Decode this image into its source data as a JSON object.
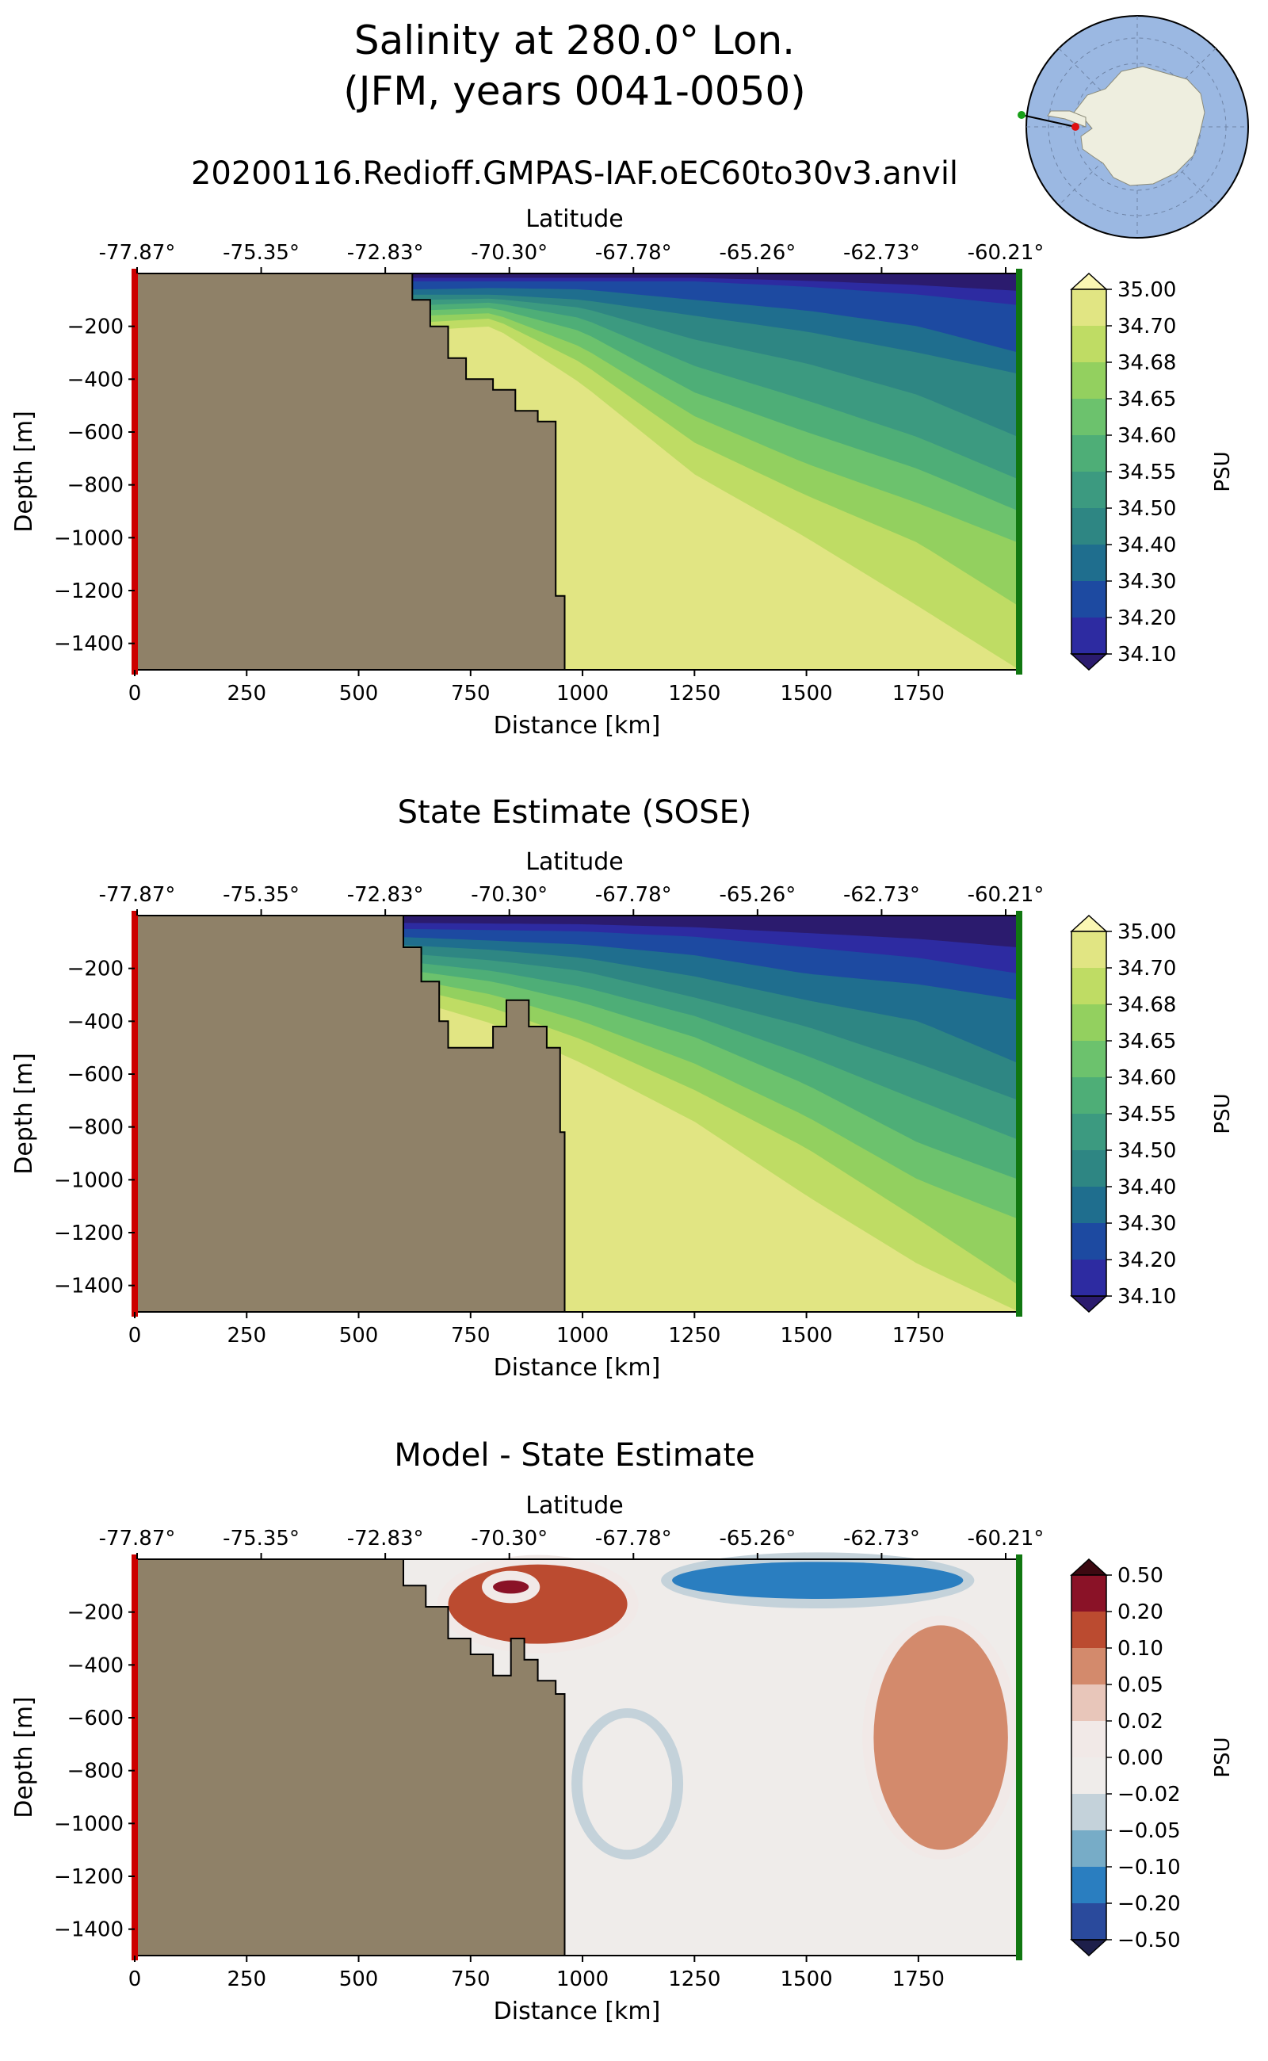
{
  "figure": {
    "title_line1": "Salinity at 280.0° Lon.",
    "title_line2": "(JFM, years 0041-0050)",
    "subtitle": "20200116.Redioff.GMPAS-IAF.oEC60to30v3.anvil"
  },
  "inset_map": {
    "projection": "south-polar stereographic",
    "transect_start_marker": "red",
    "transect_end_marker": "green",
    "ocean_color": "#9bb8e2",
    "land_color": "#eeeedf"
  },
  "colors": {
    "land": "#8f8168",
    "start_line": "#cc0000",
    "end_line": "#117711"
  },
  "chart_data": [
    {
      "type": "heatmap",
      "title": "",
      "xlabel": "Distance [km]",
      "ylabel": "Depth [m]",
      "top_axis_label": "Latitude",
      "top_ticks": [
        "-77.87°",
        "-75.35°",
        "-72.83°",
        "-70.30°",
        "-67.78°",
        "-65.26°",
        "-62.73°",
        "-60.21°"
      ],
      "x_ticks": [
        0,
        250,
        500,
        750,
        1000,
        1250,
        1500,
        1750
      ],
      "x_tick_labels": [
        "0",
        "250",
        "500",
        "750",
        "1000",
        "1250",
        "1500",
        "1750"
      ],
      "y_ticks": [
        -200,
        -400,
        -600,
        -800,
        -1000,
        -1200,
        -1400
      ],
      "y_tick_labels": [
        "−200",
        "−400",
        "−600",
        "−800",
        "−1000",
        "−1200",
        "−1400"
      ],
      "xlim": [
        0,
        1975
      ],
      "ylim": [
        -1500,
        0
      ],
      "colorbar_label": "PSU",
      "colorbar_levels": [
        "34.10",
        "34.20",
        "34.30",
        "34.40",
        "34.50",
        "34.55",
        "34.60",
        "34.65",
        "34.68",
        "34.70",
        "35.00"
      ],
      "colorbar_colors": [
        "#2b1b6e",
        "#2d2ba1",
        "#1d4aa1",
        "#1f6e8e",
        "#2e8683",
        "#3c9a80",
        "#4eae77",
        "#6cc26d",
        "#93d05f",
        "#bfdc64",
        "#e1e583",
        "#fbf7b3"
      ],
      "bathymetry": {
        "distance_km": [
          0,
          580,
          620,
          660,
          700,
          740,
          800,
          850,
          900,
          940,
          960
        ],
        "depth_m": [
          0,
          0,
          -100,
          -200,
          -320,
          -400,
          -440,
          -520,
          -560,
          -1220,
          -1500
        ]
      },
      "isoline_depths_m": {
        "distance_km": [
          640,
          800,
          1000,
          1250,
          1500,
          1750,
          1975
        ],
        "levels": [
          {
            "value": 34.2,
            "depth_m": [
              -30,
              -30,
              -30,
              -30,
              -50,
              -80,
              -120
            ]
          },
          {
            "value": 34.3,
            "depth_m": [
              -60,
              -55,
              -60,
              -100,
              -140,
              -200,
              -300
            ]
          },
          {
            "value": 34.4,
            "depth_m": [
              -80,
              -80,
              -100,
              -160,
              -220,
              -300,
              -380
            ]
          },
          {
            "value": 34.5,
            "depth_m": [
              -100,
              -95,
              -130,
              -250,
              -340,
              -460,
              -620
            ]
          },
          {
            "value": 34.55,
            "depth_m": [
              -120,
              -110,
              -170,
              -350,
              -480,
              -620,
              -780
            ]
          },
          {
            "value": 34.6,
            "depth_m": [
              -140,
              -130,
              -220,
              -450,
              -600,
              -740,
              -900
            ]
          },
          {
            "value": 34.65,
            "depth_m": [
              -160,
              -150,
              -280,
              -540,
              -720,
              -870,
              -1020
            ]
          },
          {
            "value": 34.68,
            "depth_m": [
              -185,
              -170,
              -340,
              -640,
              -840,
              -1020,
              -1260
            ]
          },
          {
            "value": 34.7,
            "depth_m": [
              -215,
              -200,
              -420,
              -760,
              -1000,
              -1260,
              -1500
            ]
          }
        ]
      }
    },
    {
      "type": "heatmap",
      "title": "State Estimate (SOSE)",
      "xlabel": "Distance [km]",
      "ylabel": "Depth [m]",
      "top_axis_label": "Latitude",
      "top_ticks": [
        "-77.87°",
        "-75.35°",
        "-72.83°",
        "-70.30°",
        "-67.78°",
        "-65.26°",
        "-62.73°",
        "-60.21°"
      ],
      "x_ticks": [
        0,
        250,
        500,
        750,
        1000,
        1250,
        1500,
        1750
      ],
      "x_tick_labels": [
        "0",
        "250",
        "500",
        "750",
        "1000",
        "1250",
        "1500",
        "1750"
      ],
      "y_ticks": [
        -200,
        -400,
        -600,
        -800,
        -1000,
        -1200,
        -1400
      ],
      "y_tick_labels": [
        "−200",
        "−400",
        "−600",
        "−800",
        "−1000",
        "−1200",
        "−1400"
      ],
      "xlim": [
        0,
        1975
      ],
      "ylim": [
        -1500,
        0
      ],
      "colorbar_label": "PSU",
      "colorbar_levels": [
        "34.10",
        "34.20",
        "34.30",
        "34.40",
        "34.50",
        "34.55",
        "34.60",
        "34.65",
        "34.68",
        "34.70",
        "35.00"
      ],
      "colorbar_colors": [
        "#2b1b6e",
        "#2d2ba1",
        "#1d4aa1",
        "#1f6e8e",
        "#2e8683",
        "#3c9a80",
        "#4eae77",
        "#6cc26d",
        "#93d05f",
        "#bfdc64",
        "#e1e583",
        "#fbf7b3"
      ],
      "bathymetry": {
        "distance_km": [
          0,
          560,
          600,
          640,
          680,
          700,
          800,
          830,
          880,
          920,
          950,
          960
        ],
        "depth_m": [
          0,
          0,
          -120,
          -250,
          -400,
          -500,
          -420,
          -320,
          -420,
          -500,
          -820,
          -1500
        ]
      },
      "isoline_depths_m": {
        "distance_km": [
          580,
          800,
          1000,
          1250,
          1500,
          1750,
          1975
        ],
        "levels": [
          {
            "value": 34.2,
            "depth_m": [
              -50,
              -55,
              -60,
              -80,
              -120,
              -160,
              -220
            ]
          },
          {
            "value": 34.3,
            "depth_m": [
              -80,
              -95,
              -110,
              -150,
              -220,
              -260,
              -320
            ]
          },
          {
            "value": 34.4,
            "depth_m": [
              -110,
              -130,
              -160,
              -230,
              -320,
              -400,
              -560
            ]
          },
          {
            "value": 34.5,
            "depth_m": [
              -140,
              -170,
              -210,
              -310,
              -420,
              -560,
              -700
            ]
          },
          {
            "value": 34.55,
            "depth_m": [
              -170,
              -210,
              -270,
              -380,
              -530,
              -700,
              -850
            ]
          },
          {
            "value": 34.6,
            "depth_m": [
              -200,
              -250,
              -330,
              -460,
              -640,
              -860,
              -1000
            ]
          },
          {
            "value": 34.65,
            "depth_m": [
              -230,
              -300,
              -400,
              -560,
              -760,
              -1000,
              -1150
            ]
          },
          {
            "value": 34.68,
            "depth_m": [
              -260,
              -350,
              -470,
              -660,
              -880,
              -1150,
              -1400
            ]
          },
          {
            "value": 34.7,
            "depth_m": [
              -300,
              -410,
              -560,
              -780,
              -1060,
              -1320,
              -1500
            ]
          }
        ]
      }
    },
    {
      "type": "heatmap",
      "title": "Model - State Estimate",
      "xlabel": "Distance [km]",
      "ylabel": "Depth [m]",
      "top_axis_label": "Latitude",
      "top_ticks": [
        "-77.87°",
        "-75.35°",
        "-72.83°",
        "-70.30°",
        "-67.78°",
        "-65.26°",
        "-62.73°",
        "-60.21°"
      ],
      "x_ticks": [
        0,
        250,
        500,
        750,
        1000,
        1250,
        1500,
        1750
      ],
      "x_tick_labels": [
        "0",
        "250",
        "500",
        "750",
        "1000",
        "1250",
        "1500",
        "1750"
      ],
      "y_ticks": [
        -200,
        -400,
        -600,
        -800,
        -1000,
        -1200,
        -1400
      ],
      "y_tick_labels": [
        "−200",
        "−400",
        "−600",
        "−800",
        "−1000",
        "−1200",
        "−1400"
      ],
      "xlim": [
        0,
        1975
      ],
      "ylim": [
        -1500,
        0
      ],
      "colorbar_label": "PSU",
      "colorbar_levels": [
        "−0.50",
        "−0.20",
        "−0.10",
        "−0.05",
        "−0.02",
        "0.00",
        "0.02",
        "0.05",
        "0.10",
        "0.20",
        "0.50"
      ],
      "colorbar_colors": [
        "#1d1f4a",
        "#2a4a9c",
        "#2a7ec0",
        "#77acc7",
        "#c4d2da",
        "#efecea",
        "#f1e9e7",
        "#e8c6ba",
        "#d38a6c",
        "#bb4b30",
        "#8a1227",
        "#3c0911"
      ],
      "bathymetry": {
        "distance_km": [
          0,
          570,
          600,
          650,
          700,
          750,
          800,
          840,
          870,
          900,
          940,
          960
        ],
        "depth_m": [
          0,
          0,
          -100,
          -180,
          -300,
          -360,
          -440,
          -300,
          -380,
          -460,
          -510,
          -1500
        ]
      },
      "anomaly_blobs": [
        {
          "name": "shelf-positive",
          "value": 0.1,
          "distance_km": [
            700,
            1100
          ],
          "depth_m": [
            -20,
            -320
          ]
        },
        {
          "name": "shelf-strong-positive",
          "value": 0.2,
          "distance_km": [
            800,
            880
          ],
          "depth_m": [
            -80,
            -130
          ]
        },
        {
          "name": "surface-negative",
          "value": -0.2,
          "distance_km": [
            1200,
            1850
          ],
          "depth_m": [
            -10,
            -150
          ]
        },
        {
          "name": "deep-negative",
          "value": -0.02,
          "distance_km": [
            1000,
            1200
          ],
          "depth_m": [
            -600,
            -1100
          ]
        },
        {
          "name": "offshore-positive",
          "value": 0.05,
          "distance_km": [
            1650,
            1950
          ],
          "depth_m": [
            -250,
            -1100
          ]
        }
      ]
    }
  ]
}
